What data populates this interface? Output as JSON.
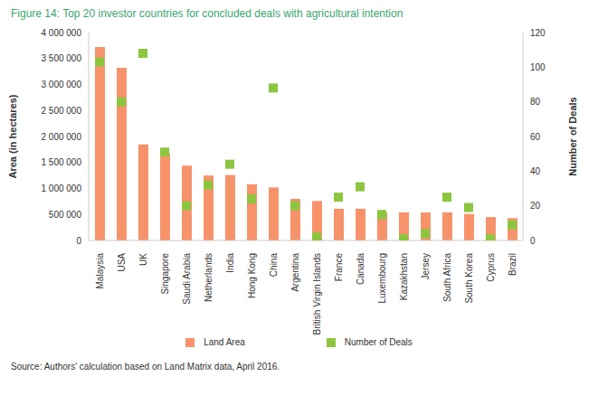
{
  "chart_data": {
    "type": "bar",
    "title": "Figure 14: Top 20 investor countries for concluded deals with agricultural intention",
    "source": "Source: Authors' calculation based on Land Matrix data, April 2016.",
    "y_label": "Area (in hectares)",
    "y2_label": "Number of Deals",
    "categories": [
      "Malaysia",
      "USA",
      "UK",
      "Singapore",
      "Saudi Arabia",
      "Netherlands",
      "India",
      "Hong Kong",
      "China",
      "Argentina",
      "British Virgin Islands",
      "France",
      "Canada",
      "Luxembourg",
      "Kazakhstan",
      "Jersey",
      "South Africa",
      "South Korea",
      "Cyprus",
      "Brazil"
    ],
    "series": [
      {
        "name": "Land Area",
        "type": "bar",
        "color": "#f7936b",
        "values": [
          3720000,
          3320000,
          1850000,
          1670000,
          1440000,
          1250000,
          1260000,
          1080000,
          1020000,
          800000,
          760000,
          610000,
          610000,
          540000,
          540000,
          540000,
          540000,
          510000,
          450000,
          430000
        ]
      },
      {
        "name": "Number of Deals",
        "type": "scatter",
        "axis": "y2",
        "marker": "square",
        "color": "#8cc63f",
        "values": [
          103,
          80,
          108,
          51,
          20,
          32,
          44,
          24,
          88,
          20,
          2,
          25,
          31,
          15,
          1,
          4,
          25,
          19,
          1,
          9
        ]
      }
    ],
    "ylim": [
      0,
      4000000
    ],
    "yticks": [
      0,
      {
        "value": 500000,
        "label": "500 000"
      },
      {
        "value": 1000000,
        "label": "1 000 000"
      },
      {
        "value": 1500000,
        "label": "1 500 000"
      },
      {
        "value": 2000000,
        "label": "2 000 000"
      },
      {
        "value": 2500000,
        "label": "2 500 000"
      },
      {
        "value": 3000000,
        "label": "3 000 000"
      },
      {
        "value": 3500000,
        "label": "3 500 000"
      },
      {
        "value": 4000000,
        "label": "4 000 000"
      }
    ],
    "y2lim": [
      0,
      120
    ],
    "y2ticks": [
      0,
      20,
      40,
      60,
      80,
      100,
      120
    ],
    "legend": "bottom",
    "grid": false
  }
}
